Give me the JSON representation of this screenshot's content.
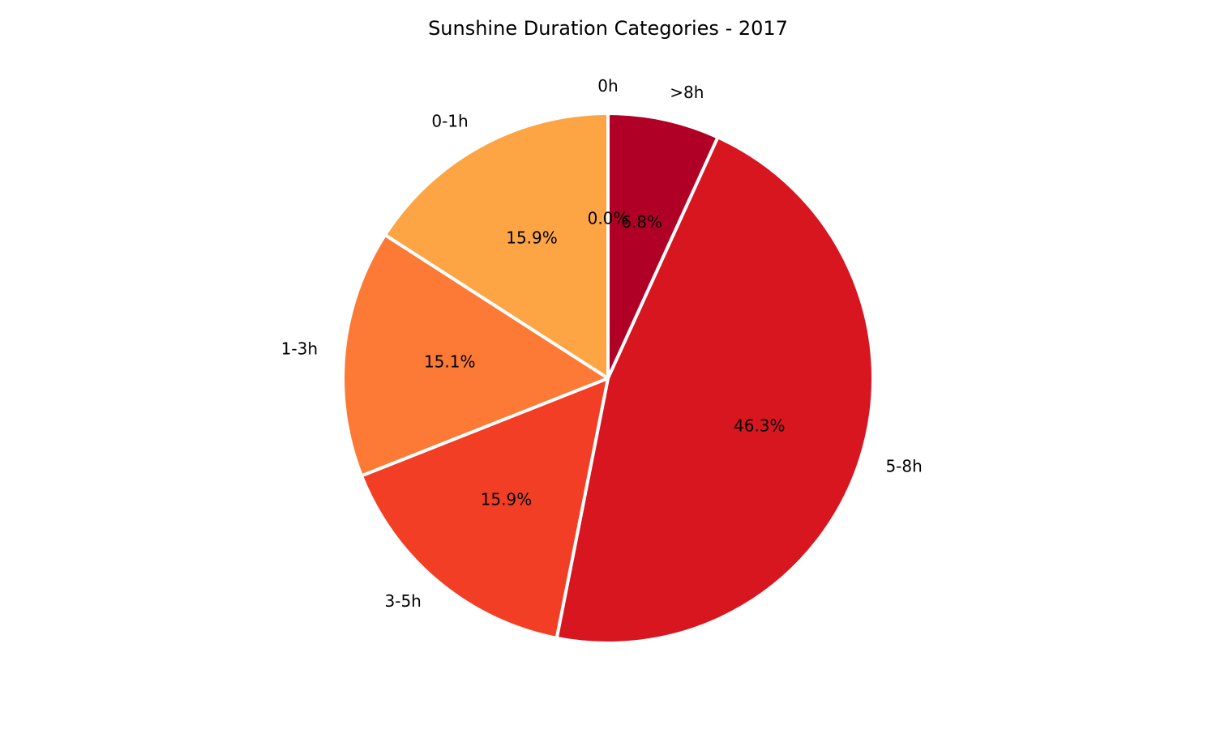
{
  "chart_data": {
    "type": "pie",
    "title": "Sunshine Duration Categories - 2017",
    "categories": [
      "0h",
      ">8h",
      "5-8h",
      "3-5h",
      "1-3h",
      "0-1h"
    ],
    "values": [
      0.0,
      6.8,
      46.3,
      15.9,
      15.1,
      15.9
    ],
    "percent_labels": [
      "0.0%",
      "6.8%",
      "46.3%",
      "15.9%",
      "15.1%",
      "15.9%"
    ],
    "colors": [
      "#fed976",
      "#b10026",
      "#d7161f",
      "#f33e26",
      "#fc7a35",
      "#fda545"
    ],
    "direction": "clockwise",
    "start": "top",
    "edge_color": "#ffffff"
  }
}
